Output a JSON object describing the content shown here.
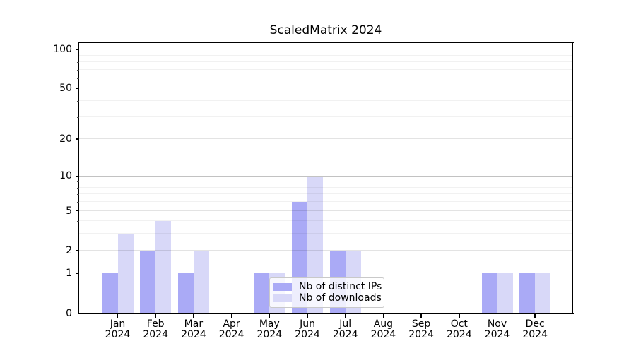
{
  "chart_data": {
    "type": "bar",
    "title": "ScaledMatrix 2024",
    "categories": [
      "Jan 2024",
      "Feb 2024",
      "Mar 2024",
      "Apr 2024",
      "May 2024",
      "Jun 2024",
      "Jul 2024",
      "Aug 2024",
      "Sep 2024",
      "Oct 2024",
      "Nov 2024",
      "Dec 2024"
    ],
    "series": [
      {
        "name": "Nb of distinct IPs",
        "color": "#aaaaf6",
        "values": [
          1,
          2,
          1,
          0,
          1,
          6,
          2,
          0,
          0,
          0,
          1,
          1
        ]
      },
      {
        "name": "Nb of downloads",
        "color": "#d8d8f8",
        "values": [
          3,
          4,
          2,
          0,
          1,
          10,
          2,
          0,
          0,
          0,
          1,
          1
        ]
      }
    ],
    "yscale": "log1p",
    "ylim": [
      0,
      112
    ],
    "y_ticks": [
      0,
      1,
      2,
      5,
      10,
      20,
      50,
      100
    ],
    "y_minor_ticks": [
      3,
      4,
      6,
      7,
      8,
      9,
      30,
      40,
      60,
      70,
      80,
      90
    ],
    "grid": true,
    "legend_position": "lower center",
    "xlabel": "",
    "ylabel": ""
  }
}
